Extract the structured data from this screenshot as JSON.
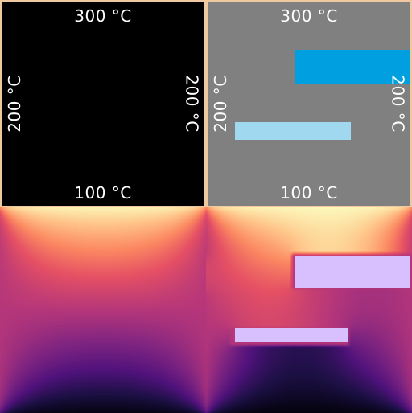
{
  "colors": {
    "empty_background": "#000000",
    "geometry_background": "#808080",
    "border": "#f0c8a0",
    "large_block": "#00a0e0",
    "small_block": "#a0d8f0",
    "field_block": "#d8c0ff"
  },
  "boundary_labels": {
    "top": "300 °C",
    "bottom": "100 °C",
    "left": "200 °C",
    "right": "200 °C"
  },
  "panels": {
    "empty_geometry": {
      "top": "300 °C",
      "bottom": "100 °C",
      "left": "200 °C",
      "right": "200 °C"
    },
    "obstacle_geometry": {
      "top": "300 °C",
      "bottom": "100 °C",
      "left": "200 °C",
      "right": "200 °C"
    }
  },
  "colormap": "magma"
}
